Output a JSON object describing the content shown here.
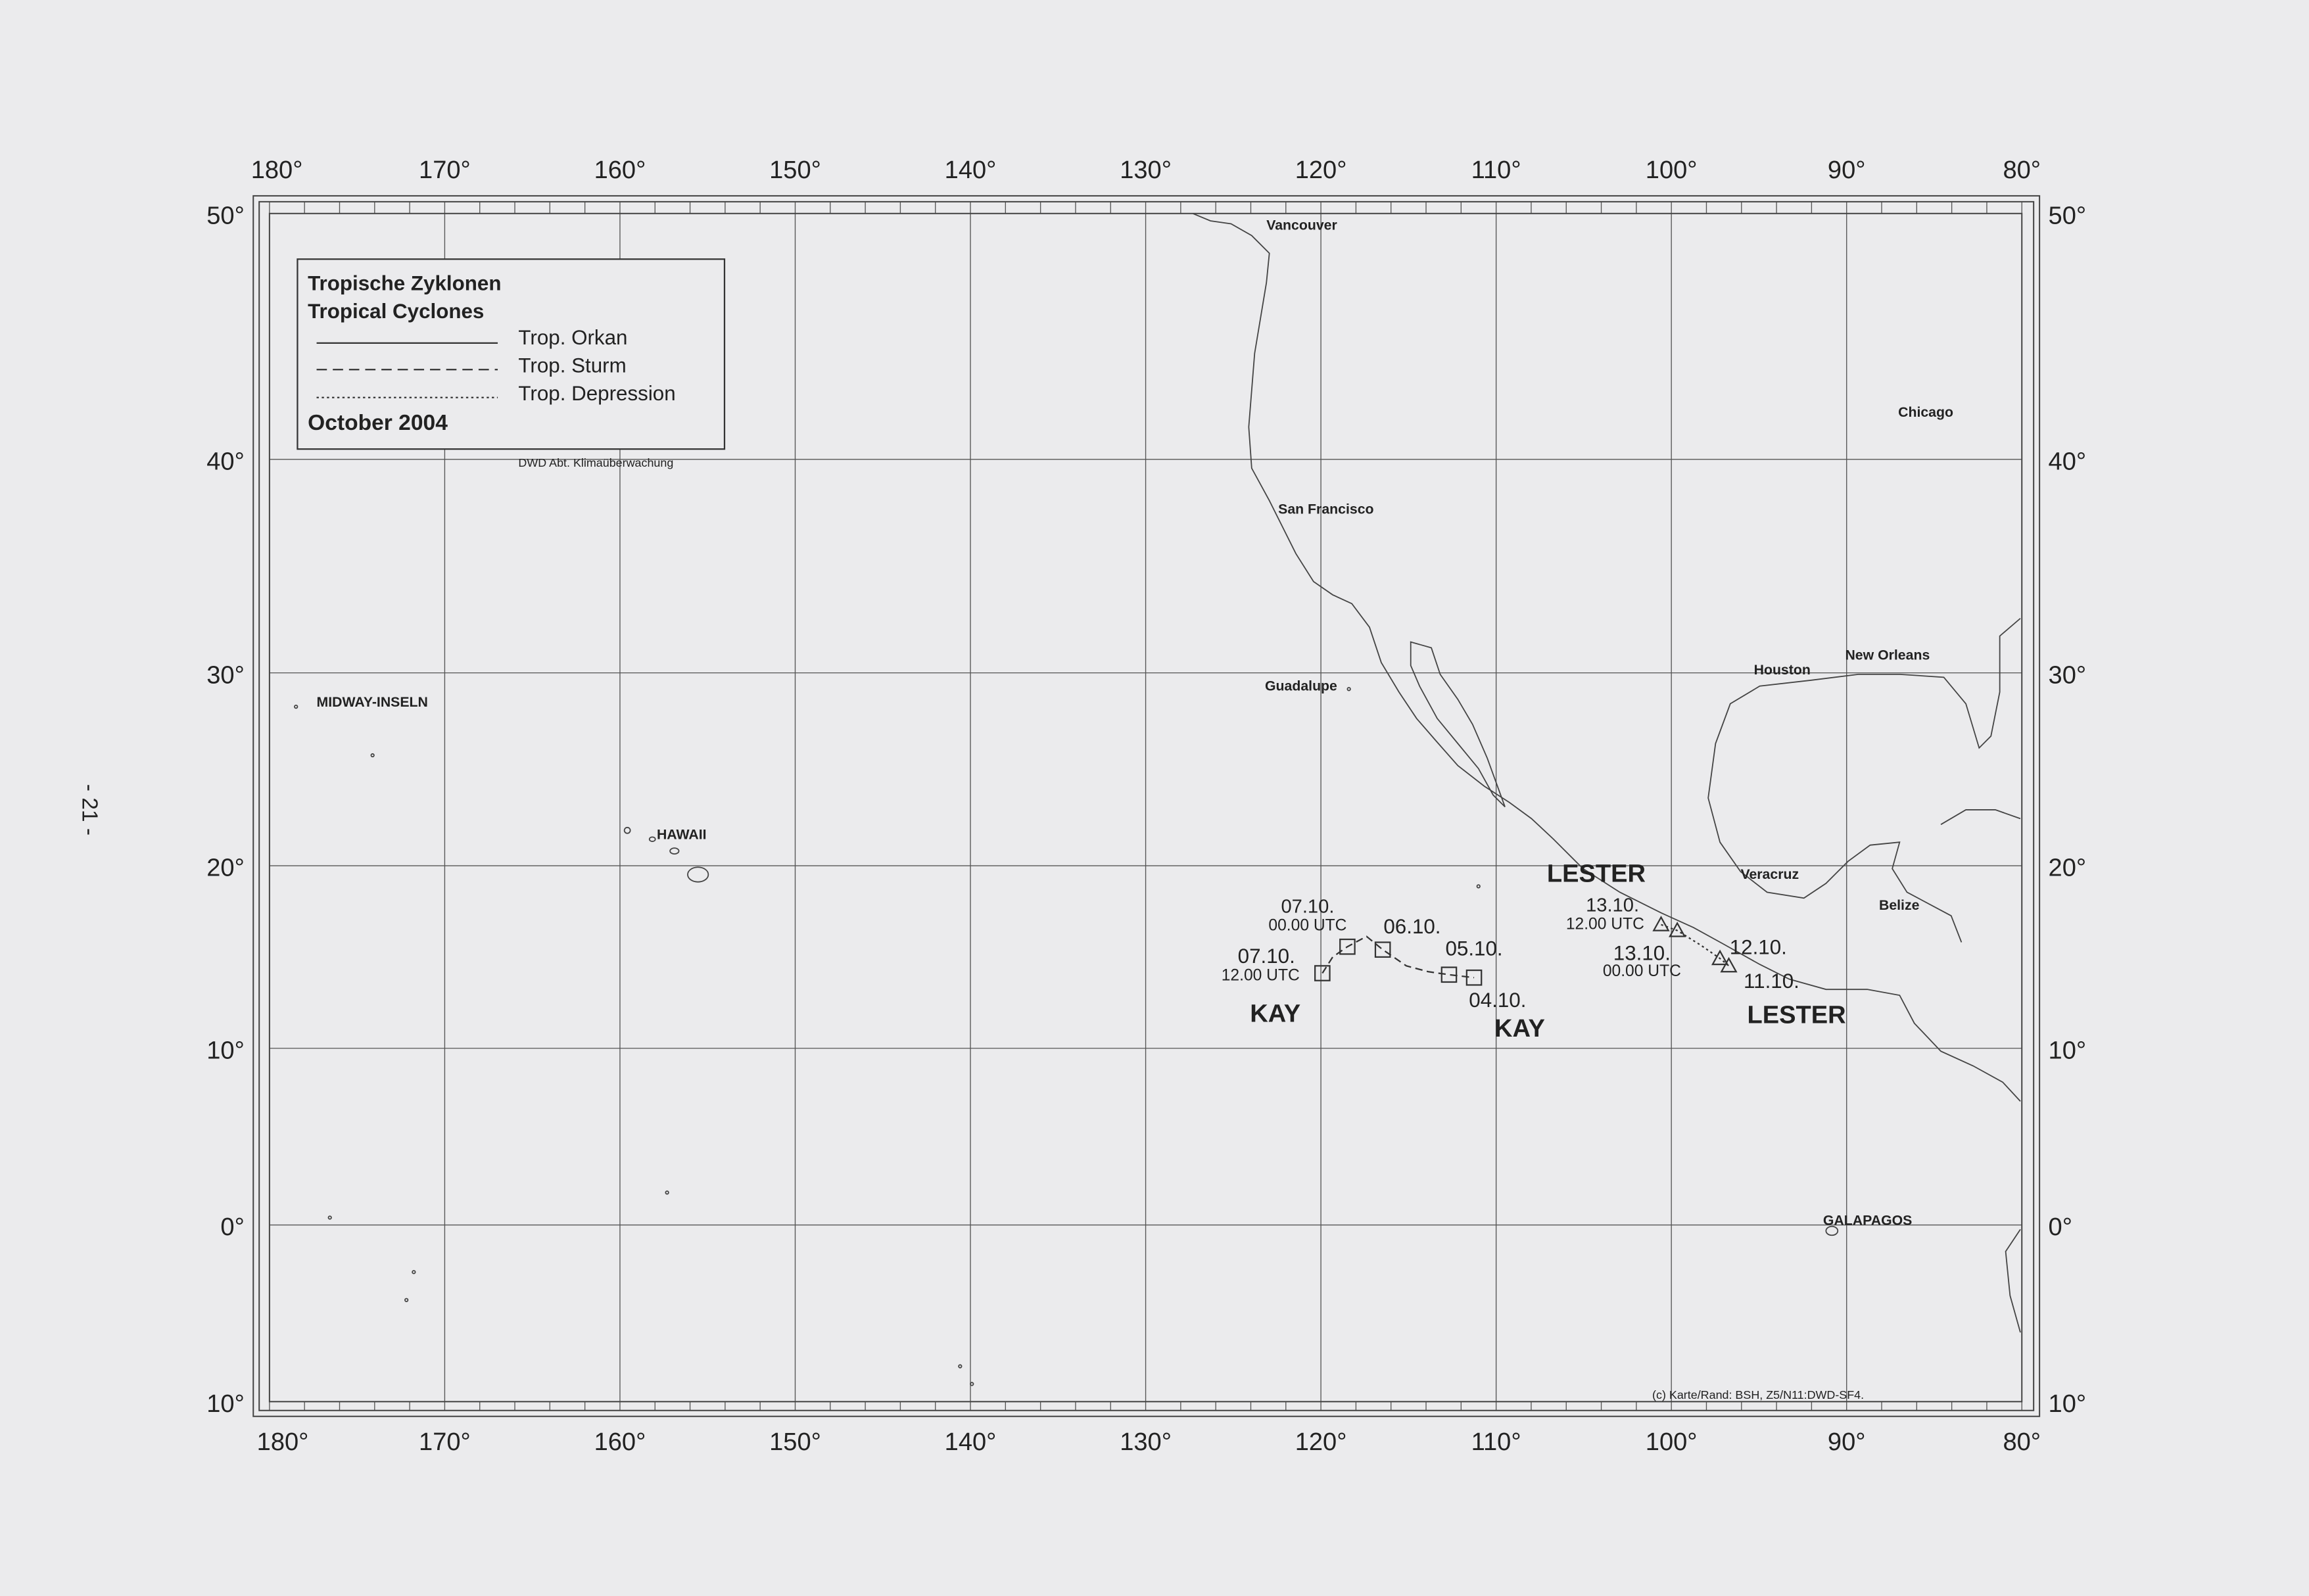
{
  "page_number": "- 21 -",
  "longitude_labels": [
    "180°",
    "170°",
    "160°",
    "150°",
    "140°",
    "130°",
    "120°",
    "110°",
    "100°",
    "90°",
    "80°"
  ],
  "latitude_labels": [
    "50°",
    "40°",
    "30°",
    "20°",
    "10°",
    "0°",
    "10°"
  ],
  "legend": {
    "title_de": "Tropische Zyklonen",
    "title_en": "Tropical Cyclones",
    "items": [
      "Trop. Orkan",
      "Trop. Sturm",
      "Trop. Depression"
    ],
    "period": "October 2004"
  },
  "source": "DWD  Abt. Klimaüberwachung",
  "places": [
    "Vancouver",
    "San Francisco",
    "Guadalupe",
    "MIDWAY-INSELN",
    "HAWAII",
    "Houston",
    "New Orleans",
    "Chicago",
    "Veracruz",
    "Belize",
    "GALAPAGOS"
  ],
  "storms": [
    {
      "labels": [
        "07.10.",
        "00.00 UTC",
        "06.10.",
        "05.10.",
        "07.10.",
        "12.00 UTC",
        "04.10.",
        "KAY",
        "KAY"
      ]
    },
    {
      "labels": [
        "LESTER",
        "13.10.",
        "12.00 UTC",
        "13.10.",
        "00.00 UTC",
        "12.10.",
        "11.10.",
        "LESTER"
      ]
    }
  ],
  "credit": "(c) Karte/Rand: BSH, Z5/N11:DWD-SF4."
}
